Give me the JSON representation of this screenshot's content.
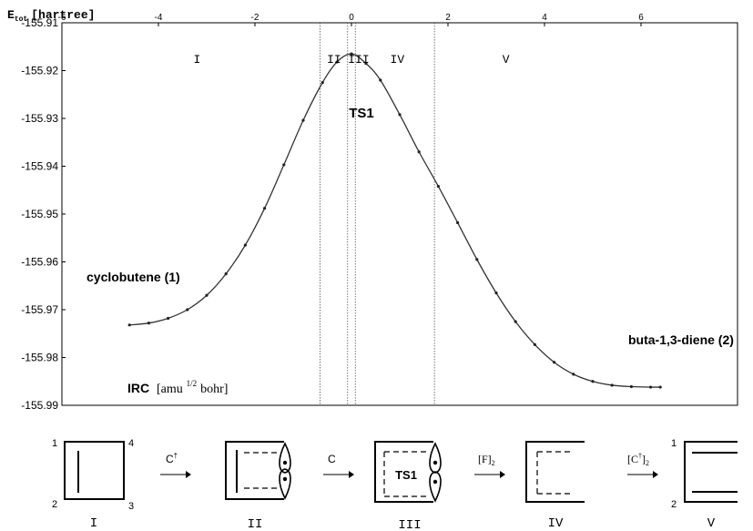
{
  "chart_data": {
    "type": "line",
    "y_axis_label": "E",
    "y_axis_label_sub": "tot",
    "y_axis_unit": "[hartree]",
    "x_axis_label_main": "IRC",
    "x_axis_label_unit": "[amu",
    "x_axis_label_sup": "1/2",
    "x_axis_label_tail": "bohr]",
    "xlim": [
      -6,
      8
    ],
    "ylim": [
      -155.99,
      -155.91
    ],
    "x_ticks": [
      -6,
      -4,
      -2,
      0,
      2,
      4,
      6
    ],
    "y_ticks": [
      -155.91,
      -155.92,
      -155.93,
      -155.94,
      -155.95,
      -155.96,
      -155.97,
      -155.98,
      -155.99
    ],
    "y_tick_labels": [
      "-155.91",
      "-155.92",
      "-155.93",
      "-155.94",
      "-155.95",
      "-155.96",
      "-155.97",
      "-155.98",
      "-155.99"
    ],
    "x_tick_labels": [
      "-6",
      "-4",
      "-2",
      "0",
      "2",
      "4",
      "6"
    ],
    "series": [
      {
        "x": [
          -4.6,
          -4.2,
          -3.8,
          -3.4,
          -3.0,
          -2.6,
          -2.2,
          -1.8,
          -1.4,
          -1.0,
          -0.6,
          -0.3,
          0.0,
          0.3,
          0.6,
          1.0,
          1.4,
          1.8,
          2.2,
          2.6,
          3.0,
          3.4,
          3.8,
          4.2,
          4.6,
          5.0,
          5.4,
          5.8,
          6.2,
          6.4
        ],
        "y": [
          -155.9732,
          -155.9728,
          -155.9718,
          -155.97,
          -155.967,
          -155.9625,
          -155.9565,
          -155.9488,
          -155.9397,
          -155.9304,
          -155.9225,
          -155.9182,
          -155.9165,
          -155.9185,
          -155.922,
          -155.9292,
          -155.937,
          -155.9442,
          -155.9518,
          -155.9595,
          -155.9665,
          -155.9725,
          -155.9773,
          -155.981,
          -155.9835,
          -155.985,
          -155.9858,
          -155.9861,
          -155.9862,
          -155.9862
        ]
      }
    ],
    "region_boundaries": [
      -0.65,
      -0.08,
      0.08,
      1.72
    ],
    "region_labels": [
      {
        "label": "I",
        "x": -3.2
      },
      {
        "label": "II",
        "x": -0.36
      },
      {
        "label": "III",
        "x": 0.15
      },
      {
        "label": "IV",
        "x": 0.95
      },
      {
        "label": "V",
        "x": 3.2
      }
    ],
    "annotations": {
      "ts": "TS1",
      "reactant": "cyclobutene (1)",
      "product": "buta-1,3-diene (2)"
    },
    "grid": false,
    "legend": "none"
  },
  "scheme": {
    "panels": [
      "I",
      "II",
      "III",
      "IV",
      "V"
    ],
    "arrows": [
      "C",
      "C",
      "[F]",
      "[C",
      ""
    ],
    "arrow_marks": {
      "dagger": "†",
      "sub2": "2",
      "close": "]"
    },
    "corner_numbers": {
      "n1": "1",
      "n2": "2",
      "n3": "3",
      "n4": "4"
    },
    "ts_label": "TS1"
  }
}
